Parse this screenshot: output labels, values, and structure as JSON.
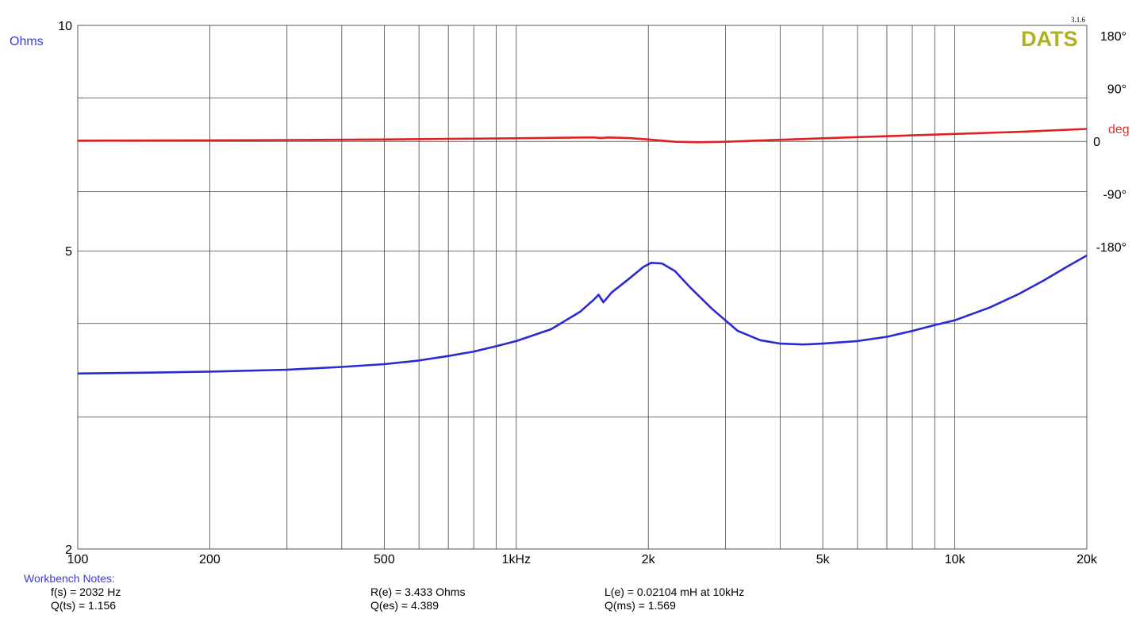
{
  "chart_data": {
    "type": "line",
    "title": "",
    "xscale": "log",
    "xlim": [
      100,
      20000
    ],
    "x_ticks": [
      {
        "value": 100,
        "label": "100"
      },
      {
        "value": 200,
        "label": "200"
      },
      {
        "value": 500,
        "label": "500"
      },
      {
        "value": 1000,
        "label": "1kHz"
      },
      {
        "value": 2000,
        "label": "2k"
      },
      {
        "value": 5000,
        "label": "5k"
      },
      {
        "value": 10000,
        "label": "10k"
      },
      {
        "value": 20000,
        "label": "20k"
      }
    ],
    "y_left": {
      "label": "Ohms",
      "scale": "log",
      "lim": [
        2,
        10
      ],
      "ticks": [
        {
          "value": 10,
          "label": "10"
        },
        {
          "value": 5,
          "label": "5"
        },
        {
          "value": 2,
          "label": "2"
        }
      ]
    },
    "y_right": {
      "label": "deg",
      "lim": [
        -180,
        180
      ],
      "ticks": [
        {
          "value": 180,
          "label": "180°"
        },
        {
          "value": 90,
          "label": "90°"
        },
        {
          "value": 0,
          "label": "0"
        },
        {
          "value": -90,
          "label": "-90°"
        },
        {
          "value": -180,
          "label": "-180°"
        }
      ]
    },
    "grid": true,
    "series": [
      {
        "axis": "left",
        "color": "#2a2ad0",
        "points": [
          [
            100,
            3.43
          ],
          [
            150,
            3.44
          ],
          [
            200,
            3.45
          ],
          [
            300,
            3.47
          ],
          [
            400,
            3.5
          ],
          [
            500,
            3.53
          ],
          [
            600,
            3.57
          ],
          [
            700,
            3.62
          ],
          [
            800,
            3.67
          ],
          [
            900,
            3.73
          ],
          [
            1000,
            3.79
          ],
          [
            1200,
            3.93
          ],
          [
            1400,
            4.15
          ],
          [
            1500,
            4.3
          ],
          [
            1540,
            4.37
          ],
          [
            1580,
            4.27
          ],
          [
            1650,
            4.4
          ],
          [
            1800,
            4.58
          ],
          [
            1950,
            4.76
          ],
          [
            2030,
            4.82
          ],
          [
            2150,
            4.81
          ],
          [
            2300,
            4.7
          ],
          [
            2500,
            4.46
          ],
          [
            2800,
            4.18
          ],
          [
            3200,
            3.91
          ],
          [
            3600,
            3.8
          ],
          [
            4000,
            3.76
          ],
          [
            4500,
            3.75
          ],
          [
            5000,
            3.76
          ],
          [
            6000,
            3.79
          ],
          [
            7000,
            3.84
          ],
          [
            8000,
            3.91
          ],
          [
            9000,
            3.98
          ],
          [
            10000,
            4.04
          ],
          [
            12000,
            4.2
          ],
          [
            14000,
            4.38
          ],
          [
            16000,
            4.57
          ],
          [
            18000,
            4.76
          ],
          [
            20000,
            4.93
          ]
        ]
      },
      {
        "axis": "right",
        "color": "#e02020",
        "points": [
          [
            100,
            1
          ],
          [
            200,
            1.5
          ],
          [
            300,
            2
          ],
          [
            500,
            3
          ],
          [
            700,
            4
          ],
          [
            1000,
            5
          ],
          [
            1300,
            6
          ],
          [
            1500,
            6.5
          ],
          [
            1560,
            5.5
          ],
          [
            1620,
            6.3
          ],
          [
            1800,
            5.5
          ],
          [
            2000,
            3
          ],
          [
            2300,
            -1
          ],
          [
            2600,
            -1.8
          ],
          [
            3000,
            -1
          ],
          [
            3500,
            1
          ],
          [
            4000,
            2.5
          ],
          [
            5000,
            5
          ],
          [
            6000,
            7
          ],
          [
            8000,
            10
          ],
          [
            10000,
            12.5
          ],
          [
            14000,
            16
          ],
          [
            20000,
            21
          ]
        ]
      }
    ]
  },
  "logo": {
    "name": "DATS",
    "version": "3.1.6"
  },
  "notes": {
    "title": "Workbench Notes:",
    "fs": "f(s) = 2032 Hz",
    "qts": "Q(ts) = 1.156",
    "re": "R(e) = 3.433 Ohms",
    "qes": "Q(es) = 4.389",
    "le": "L(e) = 0.02104 mH at 10kHz",
    "qms": "Q(ms) = 1.569"
  }
}
